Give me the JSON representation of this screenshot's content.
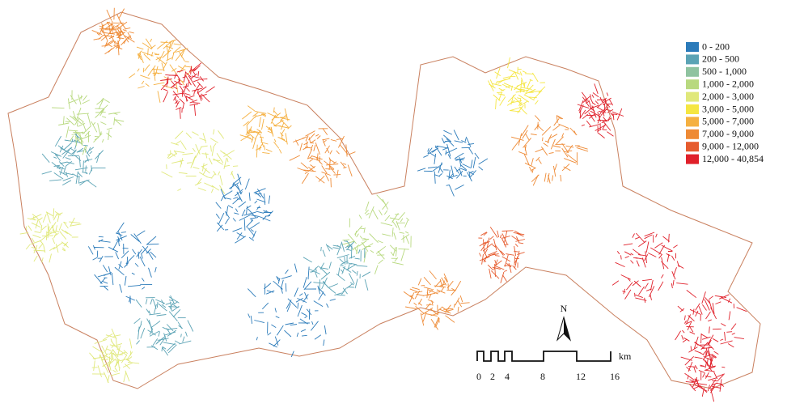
{
  "legend": {
    "items": [
      {
        "label": "0 - 200",
        "color": "#2b7bba"
      },
      {
        "label": "200 - 500",
        "color": "#5ba3b5"
      },
      {
        "label": "500 - 1,000",
        "color": "#8fc3a0"
      },
      {
        "label": "1,000 - 2,000",
        "color": "#b8d97f"
      },
      {
        "label": "2,000 - 3,000",
        "color": "#e0e87a"
      },
      {
        "label": "3,000 - 5,000",
        "color": "#f5e642"
      },
      {
        "label": "5,000 - 7,000",
        "color": "#f5b041"
      },
      {
        "label": "7,000 - 9,000",
        "color": "#ee8a35"
      },
      {
        "label": "9,000 - 12,000",
        "color": "#e65b2e"
      },
      {
        "label": "12,000 - 40,854",
        "color": "#e0202a"
      }
    ]
  },
  "scale_bar": {
    "labels": [
      "0",
      "2",
      "4",
      "8",
      "12",
      "16"
    ],
    "unit": "km"
  },
  "north_arrow": {
    "label": "N"
  }
}
